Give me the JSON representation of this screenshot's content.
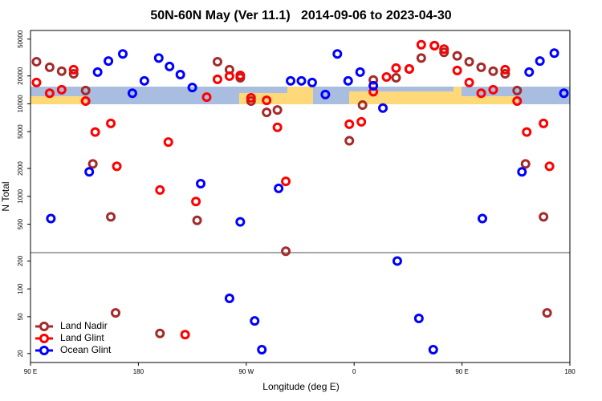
{
  "chart_data": {
    "type": "scatter",
    "title": "50N-60N May (Ver 11.1)   2014-09-06 to 2023-04-30",
    "x_label": "Longitude (deg E)",
    "y_label": "N Total",
    "log_y": true,
    "xlim": [
      90,
      540
    ],
    "xticks": [
      {
        "value": 90,
        "label": "90 E"
      },
      {
        "value": 180,
        "label": "180"
      },
      {
        "value": 270,
        "label": "90 W"
      },
      {
        "value": 360,
        "label": "0"
      },
      {
        "value": 450,
        "label": "90 E"
      },
      {
        "value": 540,
        "label": "180"
      }
    ],
    "ylim": [
      16,
      62000
    ],
    "yticks": [
      20,
      50,
      100,
      200,
      500,
      1000,
      2000,
      5000,
      10000,
      20000,
      50000
    ],
    "legend": "bottom-left",
    "series": [
      {
        "name": "Land Nadir",
        "color": "#a52a2a",
        "x": [
          95,
          106,
          116,
          126,
          136,
          142,
          157,
          161,
          198,
          229,
          246,
          256,
          265,
          274,
          287,
          296,
          303,
          356,
          367,
          376,
          395,
          406,
          416,
          427,
          435,
          446,
          456,
          466,
          476,
          486,
          496,
          503,
          518,
          521
        ],
        "values": [
          28500,
          24800,
          22500,
          21100,
          13900,
          2240,
          600,
          55,
          33,
          550,
          28500,
          23400,
          19100,
          10700,
          8070,
          8570,
          255,
          3990,
          9700,
          18100,
          19100,
          23800,
          31200,
          42500,
          36000,
          33000,
          28500,
          24800,
          22500,
          21100,
          13900,
          2240,
          600,
          55
        ]
      },
      {
        "name": "Land Glint",
        "color": "#ff0000",
        "x": [
          95,
          106,
          116,
          126,
          136,
          144,
          157,
          162,
          198,
          205,
          219,
          228,
          237,
          246,
          256,
          265,
          274,
          287,
          296,
          303,
          356,
          366,
          376,
          387,
          395,
          406,
          416,
          427,
          435,
          446,
          456,
          466,
          476,
          486,
          496,
          504,
          518,
          523
        ],
        "values": [
          17000,
          13000,
          14200,
          23400,
          10700,
          4950,
          6140,
          2110,
          1170,
          3860,
          32,
          880,
          11800,
          18400,
          19900,
          20300,
          11600,
          10900,
          5570,
          1450,
          6020,
          6390,
          13500,
          19500,
          24300,
          23800,
          43500,
          42500,
          39000,
          22900,
          17000,
          13000,
          14200,
          23400,
          10700,
          4950,
          6140,
          2110
        ]
      },
      {
        "name": "Ocean Glint",
        "color": "#0000ff",
        "x": [
          107,
          139,
          146,
          155,
          167,
          175,
          185,
          197,
          206,
          215,
          225,
          232,
          256,
          265,
          277,
          283,
          297,
          307,
          316,
          325,
          336,
          346,
          355,
          365,
          376,
          384,
          396,
          414,
          426,
          467,
          500,
          506,
          515,
          527,
          535
        ],
        "values": [
          575,
          1840,
          22000,
          29000,
          34600,
          13000,
          17700,
          31200,
          25300,
          20700,
          15000,
          1370,
          79,
          530,
          45,
          22,
          1220,
          17700,
          17700,
          17000,
          12600,
          34600,
          17700,
          22000,
          15700,
          9000,
          200,
          48,
          22,
          575,
          1840,
          22000,
          29000,
          35300,
          13000
        ]
      }
    ]
  }
}
